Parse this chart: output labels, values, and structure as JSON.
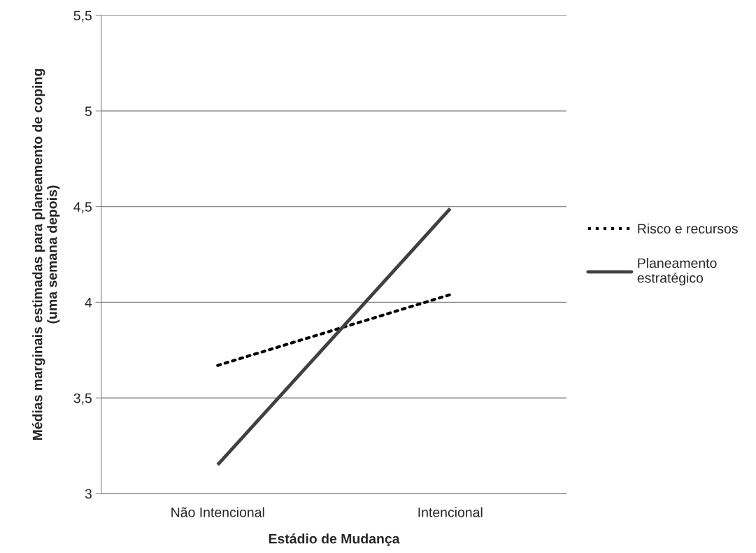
{
  "chart_data": {
    "type": "line",
    "xlabel": "Estádio de Mudança",
    "ylabel": "Médias marginais estimadas para planeamento de coping\n(uma semana depois)",
    "categories": [
      "Não Intencional",
      "Intencional"
    ],
    "series": [
      {
        "name": "Risco e recursos",
        "color": "#000000",
        "line_style": "dotted",
        "values": [
          3.67,
          4.04
        ]
      },
      {
        "name": "Planeamento\nestratégico",
        "color": "#404040",
        "line_style": "solid",
        "values": [
          3.15,
          4.49
        ]
      }
    ],
    "ylim": [
      3,
      5.5
    ],
    "yticks": [
      3,
      {
        "value": 3.5,
        "label": "3,5"
      },
      4,
      {
        "value": 4.5,
        "label": "4,5"
      },
      5,
      {
        "value": 5.5,
        "label": "5,5"
      }
    ],
    "grid": "y",
    "legend": "right",
    "marker": "none"
  }
}
